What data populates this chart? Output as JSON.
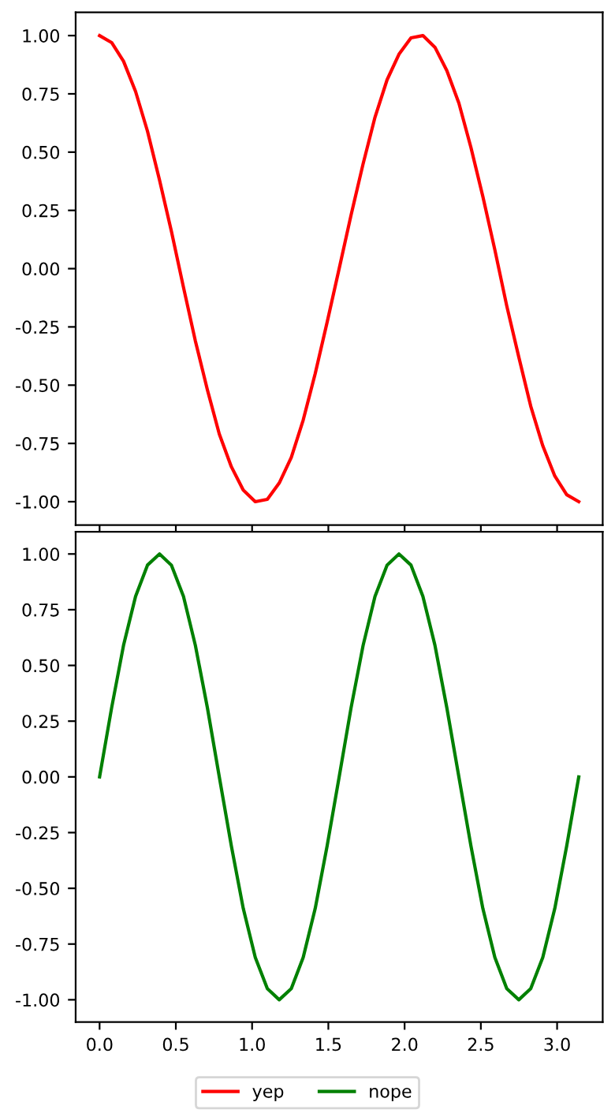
{
  "chart_data": [
    {
      "type": "line",
      "x": [
        0,
        0.079,
        0.157,
        0.236,
        0.314,
        0.393,
        0.471,
        0.55,
        0.628,
        0.707,
        0.785,
        0.864,
        0.942,
        1.021,
        1.1,
        1.178,
        1.257,
        1.335,
        1.414,
        1.492,
        1.571,
        1.649,
        1.728,
        1.806,
        1.885,
        1.963,
        2.042,
        2.12,
        2.199,
        2.277,
        2.356,
        2.435,
        2.513,
        2.592,
        2.67,
        2.749,
        2.827,
        2.906,
        2.985,
        3.063,
        3.142
      ],
      "series": [
        {
          "name": "yep",
          "color": "#ff0000",
          "values": [
            1,
            0.97,
            0.89,
            0.76,
            0.59,
            0.38,
            0.16,
            -0.08,
            -0.31,
            -0.52,
            -0.71,
            -0.85,
            -0.95,
            -1.0,
            -0.99,
            -0.92,
            -0.81,
            -0.65,
            -0.45,
            -0.23,
            0,
            0.23,
            0.45,
            0.65,
            0.81,
            0.92,
            0.99,
            1.0,
            0.95,
            0.85,
            0.71,
            0.52,
            0.31,
            0.08,
            -0.16,
            -0.38,
            -0.59,
            -0.76,
            -0.89,
            -0.97,
            -1
          ]
        }
      ],
      "xlim": [
        -0.157,
        3.299
      ],
      "xticks": [
        0.0,
        0.5,
        1.0,
        1.5,
        2.0,
        2.5,
        3.0
      ],
      "ylim": [
        -1.1,
        1.1
      ],
      "yticks": [
        {
          "value": -1,
          "label": "-1.00"
        },
        {
          "value": -0.75,
          "label": "-0.75"
        },
        {
          "value": -0.5,
          "label": "-0.50"
        },
        {
          "value": -0.25,
          "label": "-0.25"
        },
        {
          "value": 0,
          "label": "0.00"
        },
        {
          "value": 0.25,
          "label": "0.25"
        },
        {
          "value": 0.5,
          "label": "0.50"
        },
        {
          "value": 0.75,
          "label": "0.75"
        },
        {
          "value": 1,
          "label": "1.00"
        }
      ],
      "tick_labels": "y",
      "grid": false
    },
    {
      "type": "line",
      "x": [
        0,
        0.079,
        0.157,
        0.236,
        0.314,
        0.393,
        0.471,
        0.55,
        0.628,
        0.707,
        0.785,
        0.864,
        0.942,
        1.021,
        1.1,
        1.178,
        1.257,
        1.335,
        1.414,
        1.492,
        1.571,
        1.649,
        1.728,
        1.806,
        1.885,
        1.963,
        2.042,
        2.12,
        2.199,
        2.277,
        2.356,
        2.435,
        2.513,
        2.592,
        2.67,
        2.749,
        2.827,
        2.906,
        2.985,
        3.063,
        3.142
      ],
      "series": [
        {
          "name": "nope",
          "color": "#008000",
          "values": [
            0,
            0.31,
            0.59,
            0.81,
            0.95,
            1,
            0.95,
            0.81,
            0.59,
            0.31,
            0,
            -0.31,
            -0.59,
            -0.81,
            -0.95,
            -1,
            -0.95,
            -0.81,
            -0.59,
            -0.31,
            0,
            0.31,
            0.59,
            0.81,
            0.95,
            1,
            0.95,
            0.81,
            0.59,
            0.31,
            0,
            -0.31,
            -0.59,
            -0.81,
            -0.95,
            -1,
            -0.95,
            -0.81,
            -0.59,
            -0.31,
            0
          ]
        }
      ],
      "xlim": [
        -0.157,
        3.299
      ],
      "xticks": [
        {
          "value": 0,
          "label": "0.0"
        },
        0.5,
        {
          "value": 1,
          "label": "1.0"
        },
        1.5,
        {
          "value": 2,
          "label": "2.0"
        },
        2.5,
        {
          "value": 3,
          "label": "3.0"
        }
      ],
      "ylim": [
        -1.1,
        1.1
      ],
      "yticks": [
        {
          "value": -1,
          "label": "-1.00"
        },
        {
          "value": -0.75,
          "label": "-0.75"
        },
        {
          "value": -0.5,
          "label": "-0.50"
        },
        {
          "value": -0.25,
          "label": "-0.25"
        },
        {
          "value": 0,
          "label": "0.00"
        },
        {
          "value": 0.25,
          "label": "0.25"
        },
        {
          "value": 0.5,
          "label": "0.50"
        },
        {
          "value": 0.75,
          "label": "0.75"
        },
        {
          "value": 1,
          "label": "1.00"
        }
      ],
      "legend": "bottom",
      "grid": false
    }
  ]
}
